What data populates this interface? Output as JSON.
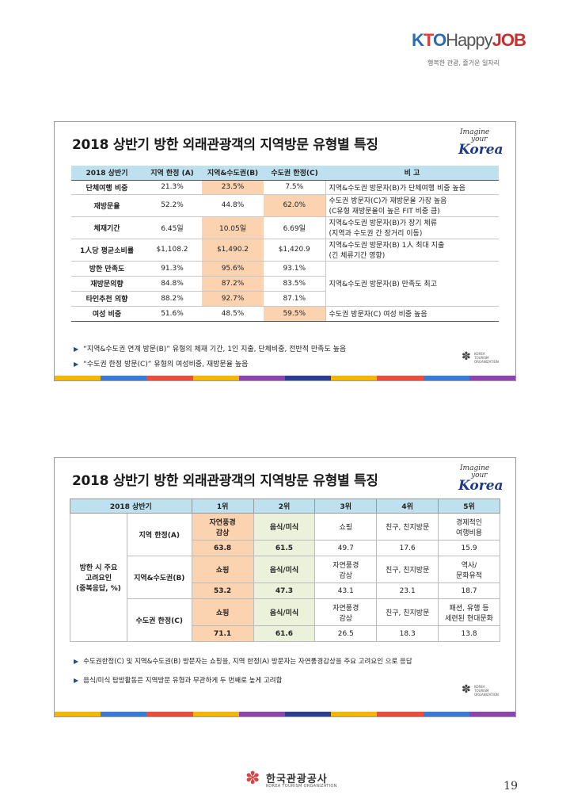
{
  "header_logo": {
    "brand_k": "K",
    "brand_t": "T",
    "brand_o": "O",
    "brand_happy": "Happy",
    "brand_job": "JOB",
    "tagline": "행복한 관광, 즐거운 일자리"
  },
  "iyk": {
    "line1": "Imagine",
    "line2": "your",
    "line3": "Korea"
  },
  "slide1": {
    "title": "2018 상반기 방한 외래관광객의 지역방문 유형별 특징",
    "headers": [
      "2018 상반기",
      "지역 한정 (A)",
      "지역&수도권(B)",
      "수도권 한정(C)",
      "비 고"
    ],
    "rows": [
      {
        "label": "단체여행 비중",
        "a": "21.3%",
        "b": "23.5%",
        "c": "7.5%",
        "note": "지역&수도권 방문자(B)가 단체여행 비중 높음"
      },
      {
        "label": "재방문율",
        "a": "52.2%",
        "b": "44.8%",
        "c": "62.0%",
        "note": "수도권 방문자(C)가 재방문율 가장 높음\n(C유형 재방문율이 높은 FIT 비중 큼)"
      },
      {
        "label": "체재기간",
        "a": "6.45일",
        "b": "10.05일",
        "c": "6.69일",
        "note": "지역&수도권 방문자(B)가 장기 체류\n(지역과 수도권 간 장거리 이동)"
      },
      {
        "label": "1人당 평균소비률",
        "a": "$1,108.2",
        "b": "$1,490.2",
        "c": "$1,420.9",
        "note": "지역&수도권 방문자(B) 1人 최대 지출\n(긴 체류기간 영향)"
      },
      {
        "label": "방한 만족도",
        "a": "91.3%",
        "b": "95.6%",
        "c": "93.1%"
      },
      {
        "label": "재방문의향",
        "a": "84.8%",
        "b": "87.2%",
        "c": "83.5%"
      },
      {
        "label": "타인추천 의향",
        "a": "88.2%",
        "b": "92.7%",
        "c": "87.1%"
      },
      {
        "label": "여성 비중",
        "a": "51.6%",
        "b": "48.5%",
        "c": "59.5%",
        "note": "수도권 방문자(C) 여성 비중 높음"
      }
    ],
    "merged_note": "지역&수도권 방문자(B) 만족도 최고",
    "bullets": [
      "“지역&수도권 연계 방문(B)” 유형의 체재 기간, 1인 지출, 단체비중, 전반적 만족도 높음",
      "“수도권 한정 방문(C)” 유형의 여성비중, 재방문율 높음"
    ]
  },
  "slide2": {
    "title": "2018 상반기 방한 외래관광객의 지역방문 유형별 특징",
    "headers": [
      "2018 상반기",
      "1위",
      "2위",
      "3위",
      "4위",
      "5위"
    ],
    "side_label": "방한 시 주요\n고려요인\n(중복응답, %)",
    "groups": [
      {
        "name": "지역 한정(A)",
        "items": [
          "자연풍경\n감상",
          "음식/미식",
          "쇼핑",
          "친구, 친지방문",
          "경제적인\n여행비용"
        ],
        "values": [
          "63.8",
          "61.5",
          "49.7",
          "17.6",
          "15.9"
        ]
      },
      {
        "name": "지역&수도권(B)",
        "items": [
          "쇼핑",
          "음식/미식",
          "자연풍경\n감상",
          "친구, 친지방문",
          "역사/\n문화유적"
        ],
        "values": [
          "53.2",
          "47.3",
          "43.1",
          "23.1",
          "18.7"
        ]
      },
      {
        "name": "수도권 한정(C)",
        "items": [
          "쇼핑",
          "음식/미식",
          "자연풍경\n감상",
          "친구, 친지방문",
          "패션, 유행 등\n세련된 현대문화"
        ],
        "values": [
          "71.1",
          "61.6",
          "26.5",
          "18.3",
          "13.8"
        ]
      }
    ],
    "bullets": [
      "수도권한정(C) 및 지역&수도권(B) 방문자는 쇼핑을, 지역 한정(A) 방문자는 자연풍경감상을 주요 고려요인 으로 응답",
      "음식/미식 탐방활동은 지역방문 유형과 무관하게 두 번째로 높게 고려함"
    ]
  },
  "kto_small": {
    "line1": "KOREA",
    "line2": "TOURISM",
    "line3": "ORGANIZATION"
  },
  "footer": {
    "name": "한국관광공사",
    "eng": "KOREA TOURISM ORGANIZATION",
    "page": "19"
  },
  "stripe_colors": [
    "#f2b705",
    "#3a7bd5",
    "#e94e3d",
    "#f2b705",
    "#8e44ad",
    "#2c3e90",
    "#f2b705",
    "#e94e3d",
    "#3a7bd5",
    "#8e44ad"
  ]
}
